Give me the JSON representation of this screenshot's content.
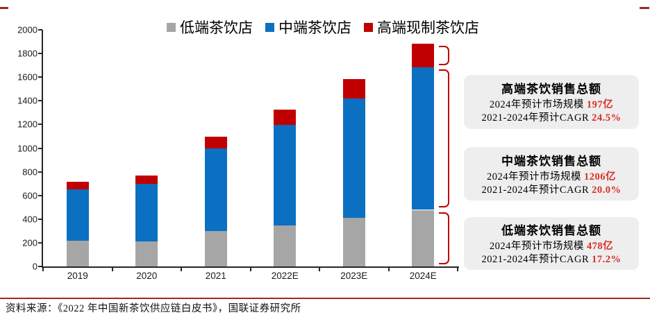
{
  "chart_data": {
    "type": "bar",
    "stacked": true,
    "categories": [
      "2019",
      "2020",
      "2021",
      "2022E",
      "2023E",
      "2024E"
    ],
    "series": [
      {
        "name": "低端茶饮店",
        "color": "#a6a6a6",
        "values": [
          218,
          212,
          297,
          348,
          408,
          478
        ]
      },
      {
        "name": "中端茶饮店",
        "color": "#0b70c2",
        "values": [
          435,
          488,
          700,
          850,
          1010,
          1206
        ]
      },
      {
        "name": "高端现制茶饮店",
        "color": "#c00000",
        "values": [
          64,
          70,
          102,
          127,
          165,
          197
        ]
      }
    ],
    "title": "",
    "xlabel": "",
    "ylabel": "",
    "ylim": [
      0,
      2000
    ],
    "ytick_step": 200,
    "grid": false,
    "legend_position": "top"
  },
  "annotations": [
    {
      "title": "高端茶饮销售总额",
      "scale_label": "2024年预计市场规模",
      "scale_value": "197亿",
      "cagr_label": "2021-2024年预计CAGR",
      "cagr_value": "24.5%"
    },
    {
      "title": "中端茶饮销售总额",
      "scale_label": "2024年预计市场规模",
      "scale_value": "1206亿",
      "cagr_label": "2021-2024年预计CAGR",
      "cagr_value": "20.0%"
    },
    {
      "title": "低端茶饮销售总额",
      "scale_label": "2024年预计市场规模",
      "scale_value": "478亿",
      "cagr_label": "2021-2024年预计CAGR",
      "cagr_value": "17.2%"
    }
  ],
  "footer": {
    "source": "资料来源：《2022 年中国新茶饮供应链白皮书》，国联证券研究所"
  },
  "colors": {
    "bar_low": "#a6a6a6",
    "bar_mid": "#0b70c2",
    "bar_high": "#c00000",
    "bracket_red": "#c00000",
    "value_red": "#d93025",
    "rule_red": "#9e2a23"
  }
}
